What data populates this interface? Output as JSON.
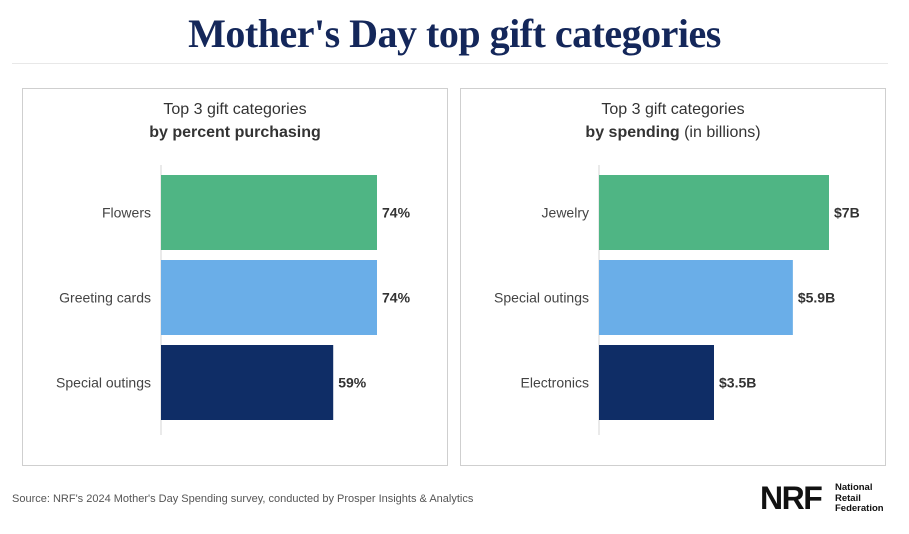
{
  "title": "Mother's Day top gift categories",
  "left": {
    "title_line1": "Top 3 gift categories",
    "title_line2_bold": "by percent purchasing",
    "title_line2_rest": ""
  },
  "right": {
    "title_line1": "Top 3 gift categories",
    "title_line2_bold": "by spending",
    "title_line2_rest": " (in billions)"
  },
  "chart_data": [
    {
      "type": "bar",
      "orientation": "horizontal",
      "title": "Top 3 gift categories by percent purchasing",
      "categories": [
        "Flowers",
        "Greeting cards",
        "Special outings"
      ],
      "values": [
        74,
        74,
        59
      ],
      "value_labels": [
        "74%",
        "74%",
        "59%"
      ],
      "colors": [
        "#4fb584",
        "#6aaee8",
        "#0f2d66"
      ],
      "xlim": [
        0,
        74
      ],
      "grid": false
    },
    {
      "type": "bar",
      "orientation": "horizontal",
      "title": "Top 3 gift categories by spending (in billions)",
      "categories": [
        "Jewelry",
        "Special outings",
        "Electronics"
      ],
      "values": [
        7,
        5.9,
        3.5
      ],
      "value_labels": [
        "$7B",
        "$5.9B",
        "$3.5B"
      ],
      "colors": [
        "#4fb584",
        "#6aaee8",
        "#0f2d66"
      ],
      "xlim": [
        0,
        7
      ],
      "grid": false
    }
  ],
  "source": "Source: NRF's 2024 Mother's Day Spending survey, conducted by Prosper Insights & Analytics",
  "logo": {
    "mark": "NRF",
    "line1": "National",
    "line2": "Retail",
    "line3": "Federation"
  }
}
